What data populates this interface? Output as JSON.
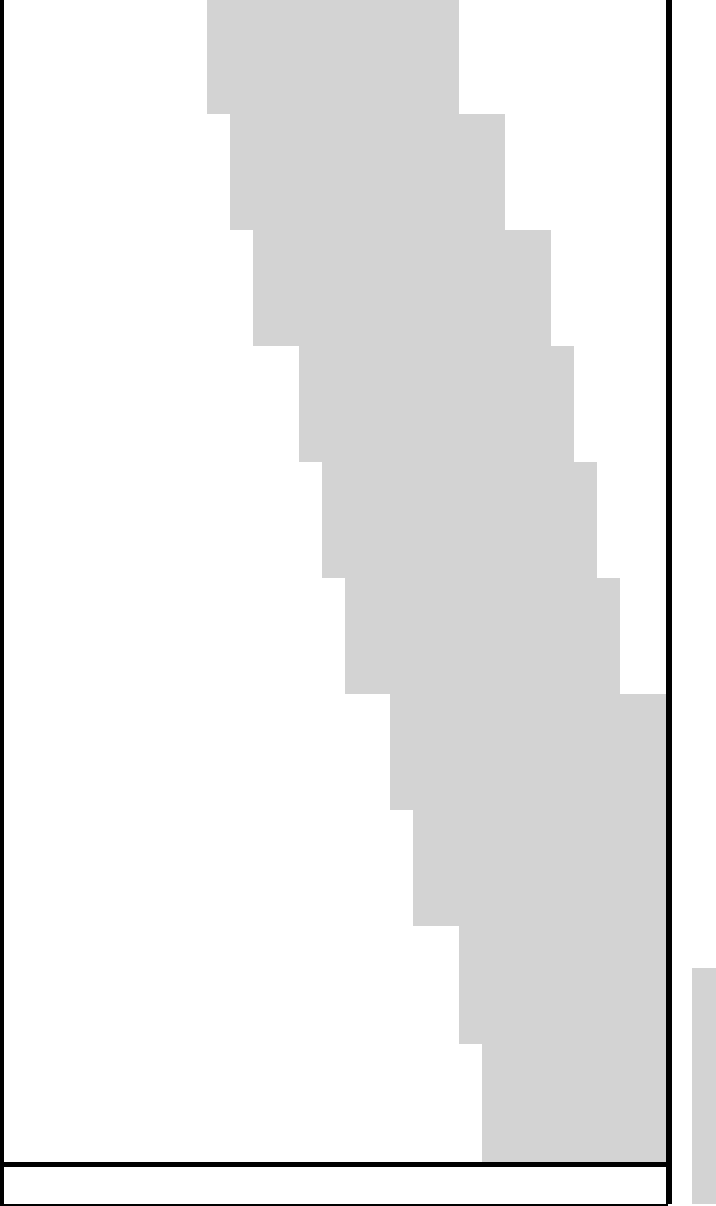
{
  "sheet": {
    "data_columns": 27,
    "groups": [
      {
        "shaded_columns": [
          7,
          17
        ]
      },
      {
        "shaded_columns": [
          8,
          19
        ]
      },
      {
        "shaded_columns": [
          9,
          21
        ]
      },
      {
        "shaded_columns": [
          11,
          22
        ]
      },
      {
        "shaded_columns": [
          12,
          23
        ]
      },
      {
        "shaded_columns": [
          13,
          24
        ]
      },
      {
        "shaded_columns": [
          15,
          26
        ]
      },
      {
        "shaded_columns": [
          16,
          26
        ]
      },
      {
        "shaded_columns": [
          18,
          26
        ]
      },
      {
        "shaded_columns": [
          19,
          26
        ]
      }
    ],
    "rows_per_group": 3
  },
  "colors": {
    "shade": "#d3d3d3",
    "grid_line": "#000000",
    "scroll_thumb": "#d3d3d3"
  }
}
